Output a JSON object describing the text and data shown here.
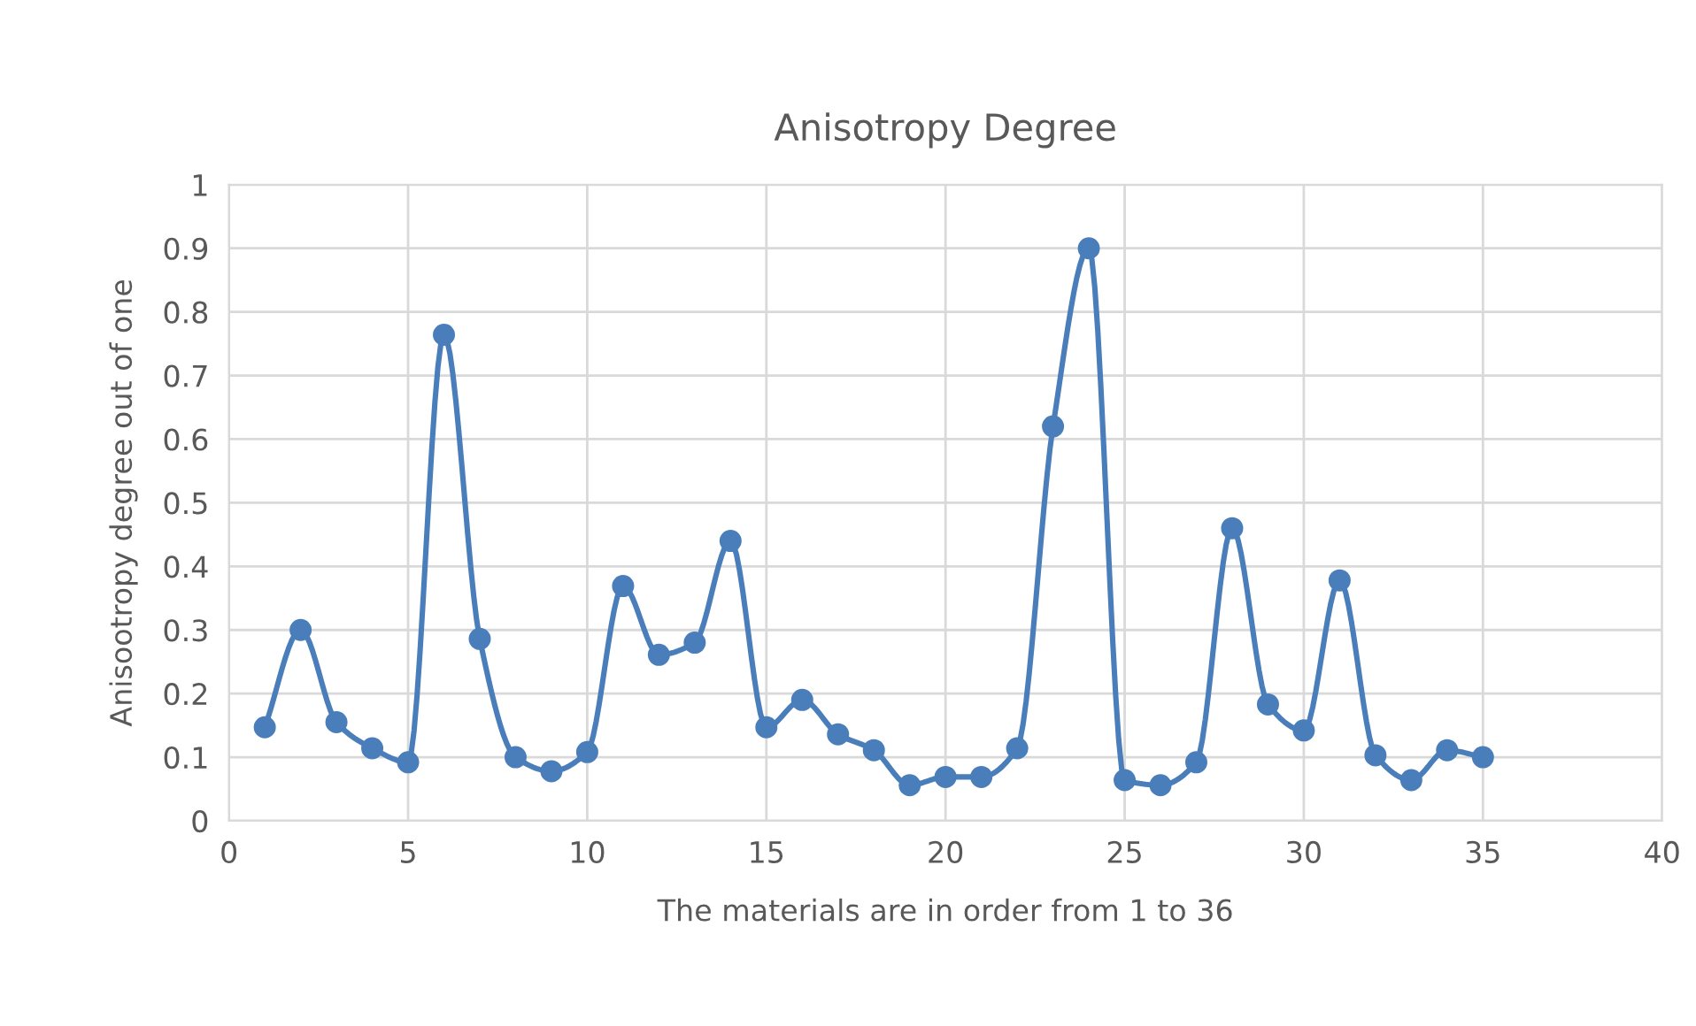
{
  "chart_data": {
    "type": "line",
    "title": "Anisotropy Degree",
    "xlabel": "The materials are in order from 1 to 36",
    "ylabel": "Anisootropy degree out of one",
    "x": [
      1,
      2,
      3,
      4,
      5,
      6,
      7,
      8,
      9,
      10,
      11,
      12,
      13,
      14,
      15,
      16,
      17,
      18,
      19,
      20,
      21,
      22,
      23,
      24,
      25,
      26,
      27,
      28,
      29,
      30,
      31,
      32,
      33,
      34,
      35
    ],
    "series": [
      {
        "color": "#4a7ebb",
        "values": [
          0.147,
          0.3,
          0.155,
          0.114,
          0.092,
          0.764,
          0.286,
          0.1,
          0.078,
          0.108,
          0.369,
          0.261,
          0.28,
          0.44,
          0.147,
          0.19,
          0.136,
          0.111,
          0.056,
          0.069,
          0.069,
          0.114,
          0.62,
          0.9,
          0.064,
          0.056,
          0.092,
          0.46,
          0.183,
          0.142,
          0.378,
          0.103,
          0.064,
          0.111,
          0.1
        ]
      }
    ],
    "xlim": [
      0,
      40
    ],
    "xticks": [
      0,
      5,
      10,
      15,
      20,
      25,
      30,
      35,
      40
    ],
    "ylim": [
      0,
      1
    ],
    "yticks": [
      0,
      0.1,
      0.2,
      0.3,
      0.4,
      0.5,
      0.6,
      0.7,
      0.8,
      0.9,
      1
    ],
    "grid": true,
    "legend": false,
    "marker": "circle",
    "line_style": "solid"
  }
}
